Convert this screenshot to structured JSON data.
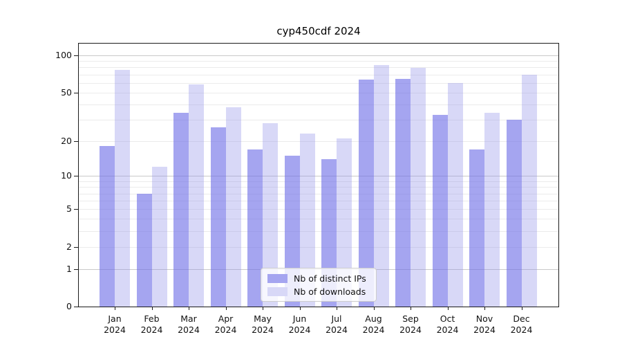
{
  "chart_data": {
    "type": "bar",
    "title": "cyp450cdf 2024",
    "categories": [
      "Jan",
      "Feb",
      "Mar",
      "Apr",
      "May",
      "Jun",
      "Jul",
      "Aug",
      "Sep",
      "Oct",
      "Nov",
      "Dec"
    ],
    "category_year": "2024",
    "series": [
      {
        "name": "Nb of distinct IPs",
        "color": "#a5a5f0",
        "fill": "rgba(110,110,231,0.62)",
        "values": [
          18,
          7,
          34,
          26,
          17,
          15,
          14,
          64,
          65,
          33,
          17,
          30
        ]
      },
      {
        "name": "Nb of downloads",
        "color": "#d8d8f7",
        "fill": "rgba(144,144,232,0.35)",
        "values": [
          76,
          12,
          58,
          38,
          28,
          23,
          21,
          84,
          79,
          60,
          34,
          70
        ]
      }
    ],
    "yscale": "log1p",
    "yticks": [
      0,
      1,
      2,
      5,
      10,
      20,
      50,
      100
    ],
    "ylim": [
      0,
      128
    ],
    "grid": {
      "major": [
        1,
        10,
        100
      ],
      "minor": [
        2,
        3,
        4,
        5,
        6,
        7,
        8,
        9,
        20,
        30,
        40,
        50,
        60,
        70,
        80,
        90
      ]
    },
    "legend_position": "lower center"
  },
  "colors": {
    "grid_major": "#c9c9c9",
    "grid_minor": "#ebebeb",
    "spine": "#1a1a1a",
    "text": "#111111",
    "background": "#ffffff",
    "legend_border": "#cccccc",
    "legend_bg": "rgba(255,255,255,0.8)"
  }
}
